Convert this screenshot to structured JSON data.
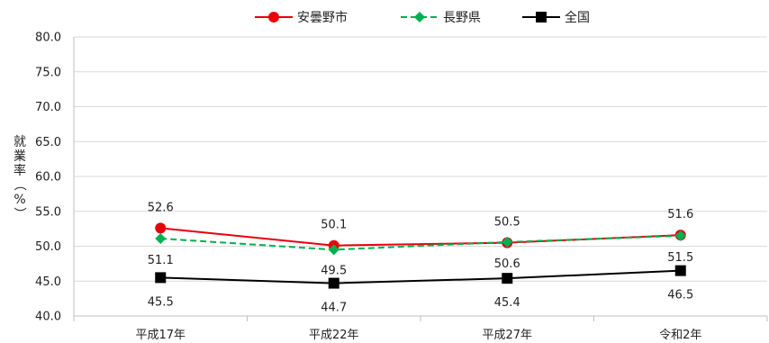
{
  "chart_data": {
    "type": "line",
    "title": "",
    "xlabel": "",
    "ylabel_chars": [
      "就",
      "業",
      "率",
      "（",
      "%",
      "）"
    ],
    "categories": [
      "平成17年",
      "平成22年",
      "平成27年",
      "令和2年"
    ],
    "ylim": [
      40,
      80
    ],
    "ytick_step": 5,
    "yticks": [
      "40.0",
      "45.0",
      "50.0",
      "55.0",
      "60.0",
      "65.0",
      "70.0",
      "75.0",
      "80.0"
    ],
    "grid": true,
    "legend_position": "top-center",
    "series": [
      {
        "name": "安曇野市",
        "values": [
          52.6,
          50.1,
          50.5,
          51.6
        ],
        "labels": [
          "52.6",
          "50.1",
          "50.5",
          "51.6"
        ],
        "color": "#e8000b",
        "marker": "circle",
        "dash": false
      },
      {
        "name": "長野県",
        "values": [
          51.1,
          49.5,
          50.6,
          51.5
        ],
        "labels": [
          "51.1",
          "49.5",
          "50.6",
          "51.5"
        ],
        "color": "#00b050",
        "marker": "diamond",
        "dash": true
      },
      {
        "name": "全国",
        "values": [
          45.5,
          44.7,
          45.4,
          46.5
        ],
        "labels": [
          "45.5",
          "44.7",
          "45.4",
          "46.5"
        ],
        "color": "#000000",
        "marker": "square",
        "dash": false
      }
    ]
  }
}
